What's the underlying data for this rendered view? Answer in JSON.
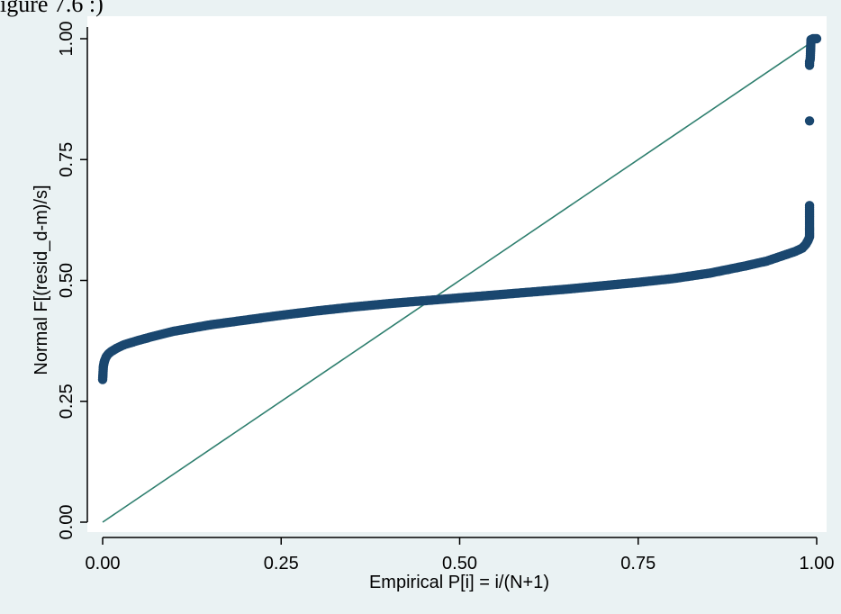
{
  "caption": "igure 7.6 :)",
  "colors": {
    "outer_bg": "#eaf2f3",
    "plot_bg": "#ffffff",
    "markers": "#1a476f",
    "reference_line": "#2f7f6f",
    "axis": "#000000"
  },
  "chart_data": {
    "type": "scatter",
    "title": "",
    "xlabel": "Empirical P[i] = i/(N+1)",
    "ylabel": "Normal F[(resid_d-m)/s]",
    "xlim": [
      0,
      1
    ],
    "ylim": [
      0,
      1
    ],
    "xticks": [
      "0.00",
      "0.25",
      "0.50",
      "0.75",
      "1.00"
    ],
    "yticks": [
      "0.00",
      "0.25",
      "0.50",
      "0.75",
      "1.00"
    ],
    "grid": false,
    "legend": "none",
    "reference_line": {
      "x": [
        0,
        1
      ],
      "y": [
        0,
        1
      ]
    },
    "series": [
      {
        "x": [
          0.0,
          0.001,
          0.002,
          0.003,
          0.005,
          0.008,
          0.012,
          0.02,
          0.03,
          0.05,
          0.07,
          0.1,
          0.15,
          0.2,
          0.25,
          0.3,
          0.35,
          0.4,
          0.45,
          0.5,
          0.55,
          0.6,
          0.65,
          0.7,
          0.75,
          0.8,
          0.85,
          0.9,
          0.93,
          0.95,
          0.97,
          0.98,
          0.985,
          0.988,
          0.99,
          0.99,
          0.99,
          0.99,
          0.99,
          0.99,
          0.99,
          0.99,
          0.991,
          0.992,
          0.995,
          1.0
        ],
        "y": [
          0.295,
          0.322,
          0.33,
          0.335,
          0.342,
          0.348,
          0.353,
          0.36,
          0.367,
          0.376,
          0.384,
          0.395,
          0.408,
          0.418,
          0.428,
          0.437,
          0.445,
          0.452,
          0.458,
          0.464,
          0.47,
          0.476,
          0.482,
          0.489,
          0.496,
          0.504,
          0.515,
          0.53,
          0.54,
          0.55,
          0.56,
          0.567,
          0.575,
          0.583,
          0.59,
          0.598,
          0.605,
          0.611,
          0.655,
          0.83,
          0.945,
          0.952,
          0.958,
          0.998,
          1.0,
          1.0
        ]
      }
    ]
  }
}
